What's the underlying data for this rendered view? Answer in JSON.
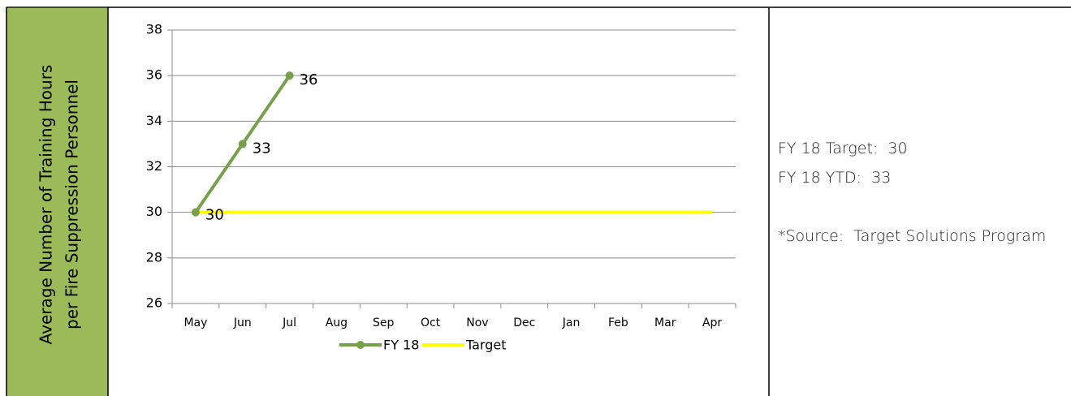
{
  "chart_data": {
    "type": "line",
    "ylabel": [
      "Average Number of Training Hours",
      "per Fire Suppression Personnel"
    ],
    "categories": [
      "May",
      "Jun",
      "Jul",
      "Aug",
      "Sep",
      "Oct",
      "Nov",
      "Dec",
      "Jan",
      "Feb",
      "Mar",
      "Apr"
    ],
    "series": [
      {
        "name": "FY 18",
        "color": "#77a04a",
        "markers": true,
        "labels": true,
        "values": [
          30,
          33,
          36,
          null,
          null,
          null,
          null,
          null,
          null,
          null,
          null,
          null
        ]
      },
      {
        "name": "Target",
        "color": "#ffff00",
        "markers": false,
        "labels": false,
        "values": [
          30,
          30,
          30,
          30,
          30,
          30,
          30,
          30,
          30,
          30,
          30,
          30
        ]
      }
    ],
    "ylim": [
      26,
      38
    ],
    "yticks": [
      26,
      28,
      30,
      32,
      34,
      36,
      38
    ],
    "grid": true,
    "legend": "bottom"
  },
  "notes": [
    "FY 18 Target:  30",
    "FY 18 YTD:  33",
    "*Source:  Target Solutions Program"
  ]
}
